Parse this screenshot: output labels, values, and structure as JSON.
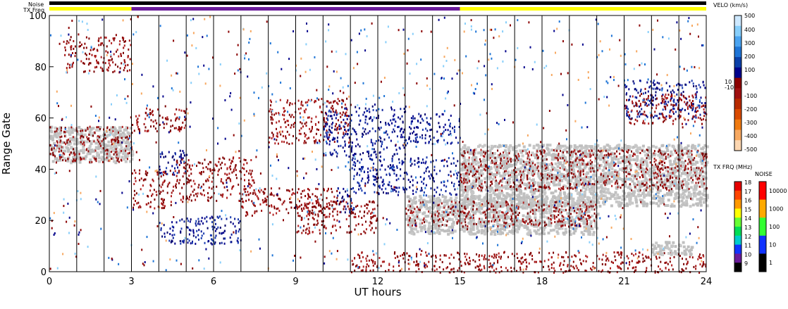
{
  "header": {
    "noise_label": "Noise",
    "txfreq_label": "TX Freq",
    "txfreq_segments": [
      {
        "start": 0,
        "end": 3,
        "color": "#ffff00"
      },
      {
        "start": 3,
        "end": 15,
        "color": "#6a1b9a"
      },
      {
        "start": 15,
        "end": 24,
        "color": "#ffff00"
      }
    ]
  },
  "chart_data": {
    "type": "heatmap",
    "xlabel": "UT hours",
    "ylabel": "Range Gate",
    "xlim": [
      0,
      24
    ],
    "ylim": [
      0,
      100
    ],
    "x_ticks": [
      0,
      3,
      6,
      9,
      12,
      15,
      18,
      21,
      24
    ],
    "y_ticks": [
      0,
      20,
      40,
      60,
      80,
      100
    ],
    "scan_boundaries": [
      0,
      1,
      2,
      3,
      4,
      5,
      6,
      7,
      8,
      9,
      10,
      11,
      12,
      13,
      14,
      15,
      16,
      17,
      18,
      19,
      20,
      21,
      22,
      23,
      24
    ],
    "grid": false,
    "colors": {
      "negative_velocity": "#8b0000",
      "positive_velocity": "#00008b",
      "ground_scatter": "#c0c0c0"
    },
    "regions": [
      {
        "kind": "ground",
        "x": [
          0,
          3
        ],
        "y": [
          43,
          57
        ]
      },
      {
        "kind": "negative",
        "x": [
          0,
          3
        ],
        "y": [
          43,
          57
        ]
      },
      {
        "kind": "negative",
        "x": [
          0.5,
          3
        ],
        "y": [
          78,
          92
        ]
      },
      {
        "kind": "negative",
        "x": [
          3,
          4.5
        ],
        "y": [
          25,
          40
        ]
      },
      {
        "kind": "negative",
        "x": [
          3,
          5
        ],
        "y": [
          55,
          65
        ]
      },
      {
        "kind": "positive",
        "x": [
          4,
          7
        ],
        "y": [
          11,
          22
        ]
      },
      {
        "kind": "positive",
        "x": [
          4,
          5
        ],
        "y": [
          38,
          48
        ]
      },
      {
        "kind": "negative",
        "x": [
          4.5,
          7.5
        ],
        "y": [
          28,
          45
        ]
      },
      {
        "kind": "negative",
        "x": [
          7,
          10.5
        ],
        "y": [
          22,
          33
        ]
      },
      {
        "kind": "positive",
        "x": [
          10.5,
          11.2
        ],
        "y": [
          23,
          33
        ]
      },
      {
        "kind": "negative",
        "x": [
          8,
          11
        ],
        "y": [
          50,
          68
        ]
      },
      {
        "kind": "positive",
        "x": [
          10,
          13
        ],
        "y": [
          45,
          65
        ]
      },
      {
        "kind": "negative",
        "x": [
          9,
          12
        ],
        "y": [
          15,
          28
        ]
      },
      {
        "kind": "positive",
        "x": [
          11,
          15
        ],
        "y": [
          30,
          45
        ]
      },
      {
        "kind": "positive",
        "x": [
          13,
          15
        ],
        "y": [
          50,
          62
        ]
      },
      {
        "kind": "ground",
        "x": [
          15,
          24
        ],
        "y": [
          26,
          50
        ]
      },
      {
        "kind": "negative",
        "x": [
          15,
          24
        ],
        "y": [
          32,
          48
        ]
      },
      {
        "kind": "ground",
        "x": [
          13,
          20
        ],
        "y": [
          15,
          30
        ]
      },
      {
        "kind": "negative",
        "x": [
          13,
          20
        ],
        "y": [
          18,
          28
        ]
      },
      {
        "kind": "negative",
        "x": [
          11,
          24
        ],
        "y": [
          0,
          8
        ]
      },
      {
        "kind": "positive",
        "x": [
          21,
          24
        ],
        "y": [
          60,
          75
        ]
      },
      {
        "kind": "negative",
        "x": [
          21,
          24
        ],
        "y": [
          58,
          70
        ]
      },
      {
        "kind": "ground",
        "x": [
          22,
          23.5
        ],
        "y": [
          7,
          12
        ]
      }
    ]
  },
  "velocity_scale": {
    "title": "VELO (km/s)",
    "ticks": [
      "500",
      "400",
      "300",
      "200",
      "100",
      "0",
      "10",
      "-10",
      "-100",
      "-200",
      "-300",
      "-400",
      "-500"
    ],
    "colors": [
      "#cde8ff",
      "#87cefa",
      "#4aa3f0",
      "#1e74d6",
      "#0a3fa8",
      "#00008b",
      "#8b0000",
      "#a01010",
      "#b82a00",
      "#d94a00",
      "#f07a10",
      "#f7a860",
      "#fcd6b0"
    ]
  },
  "txfreq_scale": {
    "title": "TX FRQ (MHz)",
    "ticks": [
      "18",
      "17",
      "16",
      "15",
      "14",
      "13",
      "12",
      "11",
      "10",
      "9"
    ],
    "colors": [
      "#e60000",
      "#ff4400",
      "#ff9900",
      "#ffff00",
      "#66ff33",
      "#00dd55",
      "#00cccc",
      "#1133ff",
      "#6a1b9a",
      "#000000"
    ]
  },
  "noise_scale": {
    "title": "NOISE",
    "ticks": [
      "10000",
      "1000",
      "100",
      "10",
      "1"
    ],
    "colors": [
      "#ff0000",
      "#ffaa00",
      "#33ff33",
      "#1133ff",
      "#000000"
    ]
  }
}
